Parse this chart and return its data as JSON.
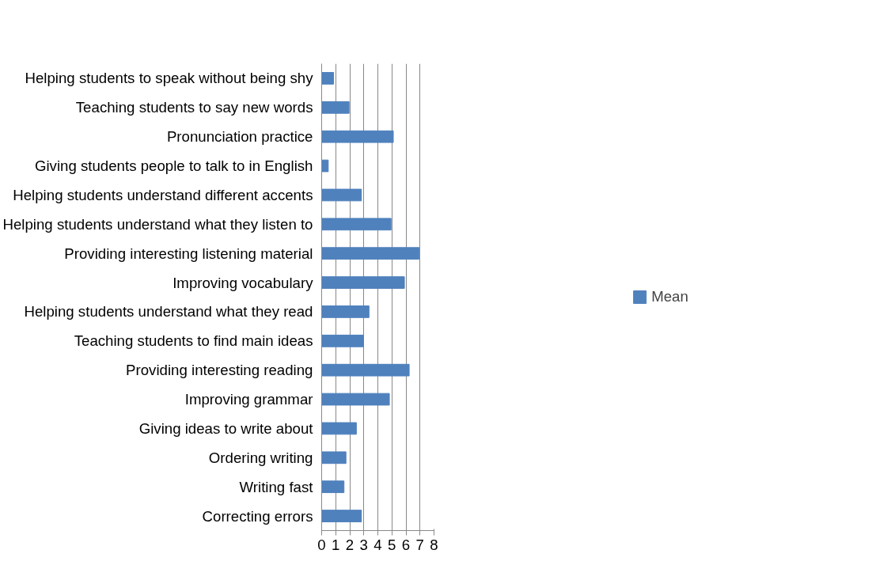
{
  "chart_data": {
    "type": "bar",
    "orientation": "horizontal",
    "categories": [
      "Helping students to speak without being shy",
      "Teaching students to say new words",
      "Pronunciation practice",
      "Giving students people to talk to in English",
      "Helping students understand different accents",
      "Helping students understand what they listen to",
      "Providing interesting listening material",
      "Improving vocabulary",
      "Helping students understand what they read",
      "Teaching students to find main ideas",
      "Providing interesting reading",
      "Improving grammar",
      "Giving ideas to write about",
      "Ordering writing",
      "Writing fast",
      "Correcting errors"
    ],
    "series": [
      {
        "name": "Mean",
        "color": "#4f81bd",
        "values": [
          0.85,
          1.95,
          5.1,
          0.47,
          2.83,
          4.94,
          6.94,
          5.89,
          3.37,
          2.97,
          6.23,
          4.82,
          2.47,
          1.73,
          1.59,
          2.83
        ]
      }
    ],
    "xlim": [
      0,
      8
    ],
    "xticks": [
      0,
      1,
      2,
      3,
      4,
      5,
      6,
      7,
      8
    ],
    "grid": "x",
    "legend": "right"
  }
}
